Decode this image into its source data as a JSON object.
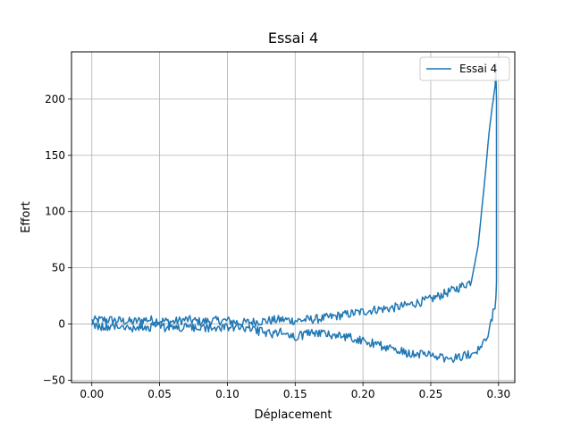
{
  "chart_data": {
    "type": "line",
    "title": "Essai 4",
    "xlabel": "Déplacement",
    "ylabel": "Effort",
    "xlim": [
      -0.015,
      0.312
    ],
    "ylim": [
      -52,
      242
    ],
    "x_ticks": [
      0.0,
      0.05,
      0.1,
      0.15,
      0.2,
      0.25,
      0.3
    ],
    "x_tick_labels": [
      "0.00",
      "0.05",
      "0.10",
      "0.15",
      "0.20",
      "0.25",
      "0.30"
    ],
    "y_ticks": [
      -50,
      0,
      50,
      100,
      150,
      200
    ],
    "y_tick_labels": [
      "−50",
      "0",
      "50",
      "100",
      "150",
      "200"
    ],
    "grid": true,
    "legend_position": "top-right",
    "colors": {
      "series": "#1f77b4",
      "grid": "#b0b0b0",
      "axes": "#000000"
    },
    "series": [
      {
        "name": "Essai 4",
        "x": [
          0.0,
          0.01,
          0.02,
          0.03,
          0.04,
          0.05,
          0.06,
          0.07,
          0.08,
          0.09,
          0.1,
          0.11,
          0.12,
          0.13,
          0.14,
          0.15,
          0.16,
          0.17,
          0.18,
          0.19,
          0.2,
          0.21,
          0.22,
          0.23,
          0.24,
          0.25,
          0.26,
          0.27,
          0.28,
          0.285,
          0.29,
          0.293,
          0.296,
          0.2975,
          0.298,
          0.2985,
          0.2985,
          0.298,
          0.296,
          0.293,
          0.29,
          0.285,
          0.28,
          0.275,
          0.27,
          0.265,
          0.26,
          0.25,
          0.24,
          0.23,
          0.22,
          0.21,
          0.2,
          0.19,
          0.18,
          0.17,
          0.16,
          0.15,
          0.14,
          0.13,
          0.12,
          0.11,
          0.1,
          0.09,
          0.08,
          0.07,
          0.06,
          0.05,
          0.04,
          0.03,
          0.02,
          0.01,
          0.0
        ],
        "y": [
          3,
          4,
          3,
          2,
          4,
          3,
          2,
          4,
          2,
          3,
          3,
          1,
          2,
          3,
          4,
          3,
          4,
          5,
          7,
          9,
          11,
          13,
          14,
          16,
          19,
          22,
          27,
          32,
          38,
          70,
          130,
          170,
          200,
          215,
          232,
          200,
          40,
          20,
          10,
          -5,
          -15,
          -22,
          -26,
          -28,
          -30,
          -31,
          -30,
          -28,
          -27,
          -25,
          -22,
          -18,
          -14,
          -12,
          -10,
          -8,
          -8,
          -12,
          -7,
          -9,
          -5,
          -4,
          -3,
          -3,
          -4,
          -3,
          -3,
          -3,
          -2,
          -3,
          -2,
          -2,
          -1
        ]
      }
    ]
  }
}
